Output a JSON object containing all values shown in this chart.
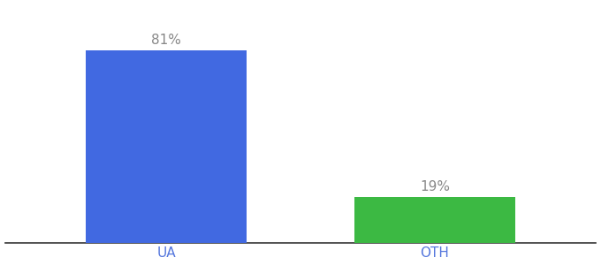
{
  "categories": [
    "UA",
    "OTH"
  ],
  "values": [
    81,
    19
  ],
  "bar_colors": [
    "#4169E1",
    "#3CB943"
  ],
  "label_texts": [
    "81%",
    "19%"
  ],
  "label_color": "#888888",
  "ylabel": "",
  "ylim": [
    0,
    100
  ],
  "background_color": "#ffffff",
  "bar_width": 0.6,
  "label_fontsize": 11,
  "tick_fontsize": 11,
  "tick_color": "#5577dd"
}
